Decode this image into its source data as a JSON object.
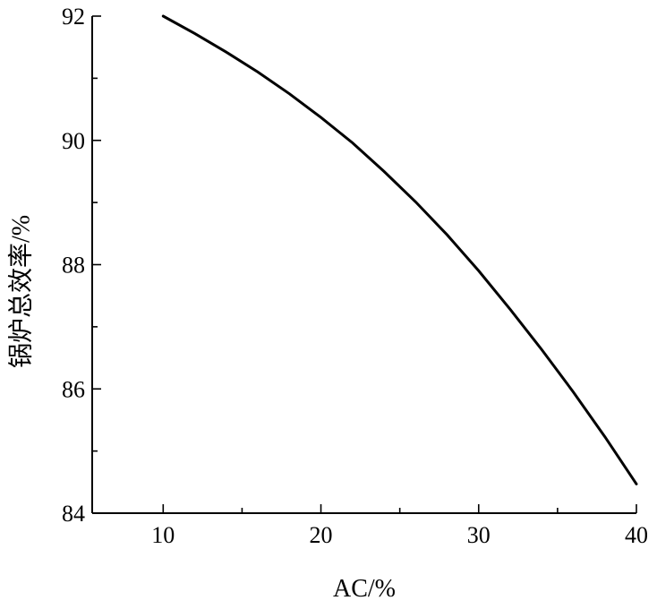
{
  "chart_data": {
    "type": "line",
    "title": "",
    "xlabel": "AC/%",
    "ylabel": "锅炉总效率/%",
    "xlim": [
      5.5,
      40
    ],
    "ylim": [
      84,
      92
    ],
    "x_ticks": [
      10,
      20,
      30,
      40
    ],
    "x_minor_ticks": [
      15,
      25,
      35
    ],
    "y_ticks": [
      84,
      86,
      88,
      90,
      92
    ],
    "y_minor_ticks": [
      85,
      87,
      89,
      91
    ],
    "grid": false,
    "legend": "none",
    "series": [
      {
        "color": "#000000",
        "x": [
          10,
          12,
          14,
          16,
          18,
          20,
          22,
          24,
          26,
          28,
          30,
          32,
          34,
          36,
          38,
          40
        ],
        "y": [
          92.0,
          91.72,
          91.42,
          91.1,
          90.75,
          90.37,
          89.96,
          89.5,
          89.01,
          88.48,
          87.9,
          87.28,
          86.63,
          85.95,
          85.23,
          84.47
        ]
      }
    ]
  }
}
